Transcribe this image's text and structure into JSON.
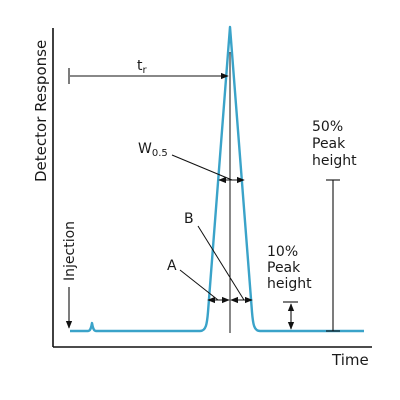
{
  "diagram": {
    "axis": {
      "y_title": "Detector Response",
      "x_title": "Time"
    },
    "annotations": {
      "retention_time": {
        "main": "t",
        "sub": "r"
      },
      "width_half": {
        "main": "W",
        "sub": "0.5"
      },
      "point_a": "A",
      "point_b": "B",
      "injection": "Injection",
      "fifty_percent": [
        "50%",
        "Peak",
        "height"
      ],
      "ten_percent": [
        "10%",
        "Peak",
        "height"
      ]
    },
    "colors": {
      "trace": "#3aa3c9",
      "ink": "#111111",
      "background": "#ffffff"
    }
  }
}
